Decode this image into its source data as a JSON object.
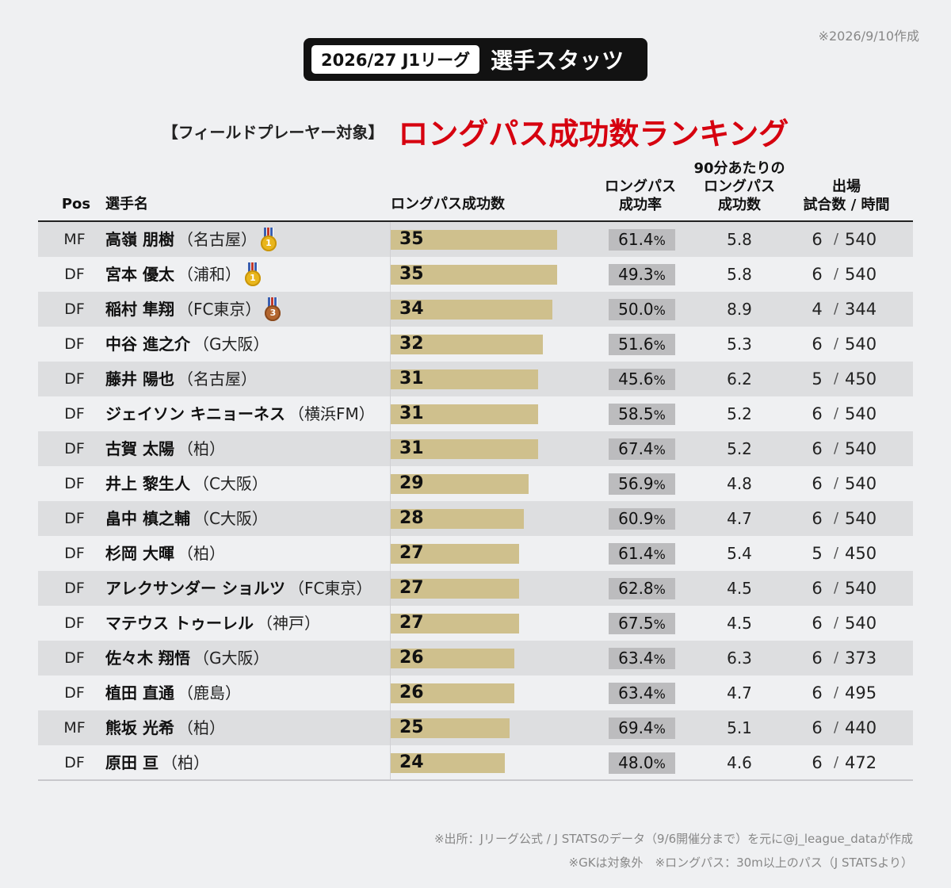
{
  "created_note": "※2026/9/10作成",
  "header": {
    "season": "2026/27 J1リーグ",
    "stats_label": "選手スタッツ"
  },
  "title": {
    "subtitle": "【フィールドプレーヤー対象】",
    "main": "ロングパス成功数ランキング"
  },
  "columns": {
    "pos": "Pos",
    "player": "選手名",
    "long_pass": "ロングパス成功数",
    "rate_line1": "ロングパス",
    "rate_line2": "成功率",
    "per90_line1": "90分あたりの",
    "per90_line2": "ロングパス",
    "per90_line3": "成功数",
    "apps_line1": "出場",
    "apps_line2": "試合数 / 時間"
  },
  "chart_data": {
    "type": "bar",
    "title": "ロングパス成功数ランキング",
    "xlabel": "",
    "ylabel": "ロングパス成功数",
    "xlim": [
      0,
      35
    ],
    "colors": {
      "bar": "#cfc08d",
      "rate_box": "#bcbcbe",
      "accent": "#d6000f"
    },
    "rows": [
      {
        "pos": "MF",
        "name": "高嶺 朋樹",
        "club": "（名古屋）",
        "medal": "gold",
        "medal_rank": "1",
        "value": 35,
        "rate": "61.4",
        "per90": "5.8",
        "games": "6",
        "minutes": "540"
      },
      {
        "pos": "DF",
        "name": "宮本 優太",
        "club": "（浦和）",
        "medal": "gold",
        "medal_rank": "1",
        "value": 35,
        "rate": "49.3",
        "per90": "5.8",
        "games": "6",
        "minutes": "540"
      },
      {
        "pos": "DF",
        "name": "稲村 隼翔",
        "club": "（FC東京）",
        "medal": "bronze",
        "medal_rank": "3",
        "value": 34,
        "rate": "50.0",
        "per90": "8.9",
        "games": "4",
        "minutes": "344"
      },
      {
        "pos": "DF",
        "name": "中谷 進之介",
        "club": "（G大阪）",
        "medal": "",
        "medal_rank": "",
        "value": 32,
        "rate": "51.6",
        "per90": "5.3",
        "games": "6",
        "minutes": "540"
      },
      {
        "pos": "DF",
        "name": "藤井 陽也",
        "club": "（名古屋）",
        "medal": "",
        "medal_rank": "",
        "value": 31,
        "rate": "45.6",
        "per90": "6.2",
        "games": "5",
        "minutes": "450"
      },
      {
        "pos": "DF",
        "name": "ジェイソン キニョーネス",
        "club": "（横浜FM）",
        "medal": "",
        "medal_rank": "",
        "value": 31,
        "rate": "58.5",
        "per90": "5.2",
        "games": "6",
        "minutes": "540"
      },
      {
        "pos": "DF",
        "name": "古賀 太陽",
        "club": "（柏）",
        "medal": "",
        "medal_rank": "",
        "value": 31,
        "rate": "67.4",
        "per90": "5.2",
        "games": "6",
        "minutes": "540"
      },
      {
        "pos": "DF",
        "name": "井上 黎生人",
        "club": "（C大阪）",
        "medal": "",
        "medal_rank": "",
        "value": 29,
        "rate": "56.9",
        "per90": "4.8",
        "games": "6",
        "minutes": "540"
      },
      {
        "pos": "DF",
        "name": "畠中 槙之輔",
        "club": "（C大阪）",
        "medal": "",
        "medal_rank": "",
        "value": 28,
        "rate": "60.9",
        "per90": "4.7",
        "games": "6",
        "minutes": "540"
      },
      {
        "pos": "DF",
        "name": "杉岡 大暉",
        "club": "（柏）",
        "medal": "",
        "medal_rank": "",
        "value": 27,
        "rate": "61.4",
        "per90": "5.4",
        "games": "5",
        "minutes": "450"
      },
      {
        "pos": "DF",
        "name": "アレクサンダー ショルツ",
        "club": "（FC東京）",
        "medal": "",
        "medal_rank": "",
        "value": 27,
        "rate": "62.8",
        "per90": "4.5",
        "games": "6",
        "minutes": "540"
      },
      {
        "pos": "DF",
        "name": "マテウス トゥーレル",
        "club": "（神戸）",
        "medal": "",
        "medal_rank": "",
        "value": 27,
        "rate": "67.5",
        "per90": "4.5",
        "games": "6",
        "minutes": "540"
      },
      {
        "pos": "DF",
        "name": "佐々木 翔悟",
        "club": "（G大阪）",
        "medal": "",
        "medal_rank": "",
        "value": 26,
        "rate": "63.4",
        "per90": "6.3",
        "games": "6",
        "minutes": "373"
      },
      {
        "pos": "DF",
        "name": "植田 直通",
        "club": "（鹿島）",
        "medal": "",
        "medal_rank": "",
        "value": 26,
        "rate": "63.4",
        "per90": "4.7",
        "games": "6",
        "minutes": "495"
      },
      {
        "pos": "MF",
        "name": "熊坂 光希",
        "club": "（柏）",
        "medal": "",
        "medal_rank": "",
        "value": 25,
        "rate": "69.4",
        "per90": "5.1",
        "games": "6",
        "minutes": "440"
      },
      {
        "pos": "DF",
        "name": "原田 亘",
        "club": "（柏）",
        "medal": "",
        "medal_rank": "",
        "value": 24,
        "rate": "48.0",
        "per90": "4.6",
        "games": "6",
        "minutes": "472"
      }
    ]
  },
  "units": {
    "percent": "%",
    "slash": "/"
  },
  "footer": {
    "source": "※出所：Jリーグ公式 / J STATSのデータ（9/6開催分まで）を元に@j_league_dataが作成",
    "notes": "※GKは対象外　※ロングパス：30m以上のパス（J STATSより）"
  }
}
